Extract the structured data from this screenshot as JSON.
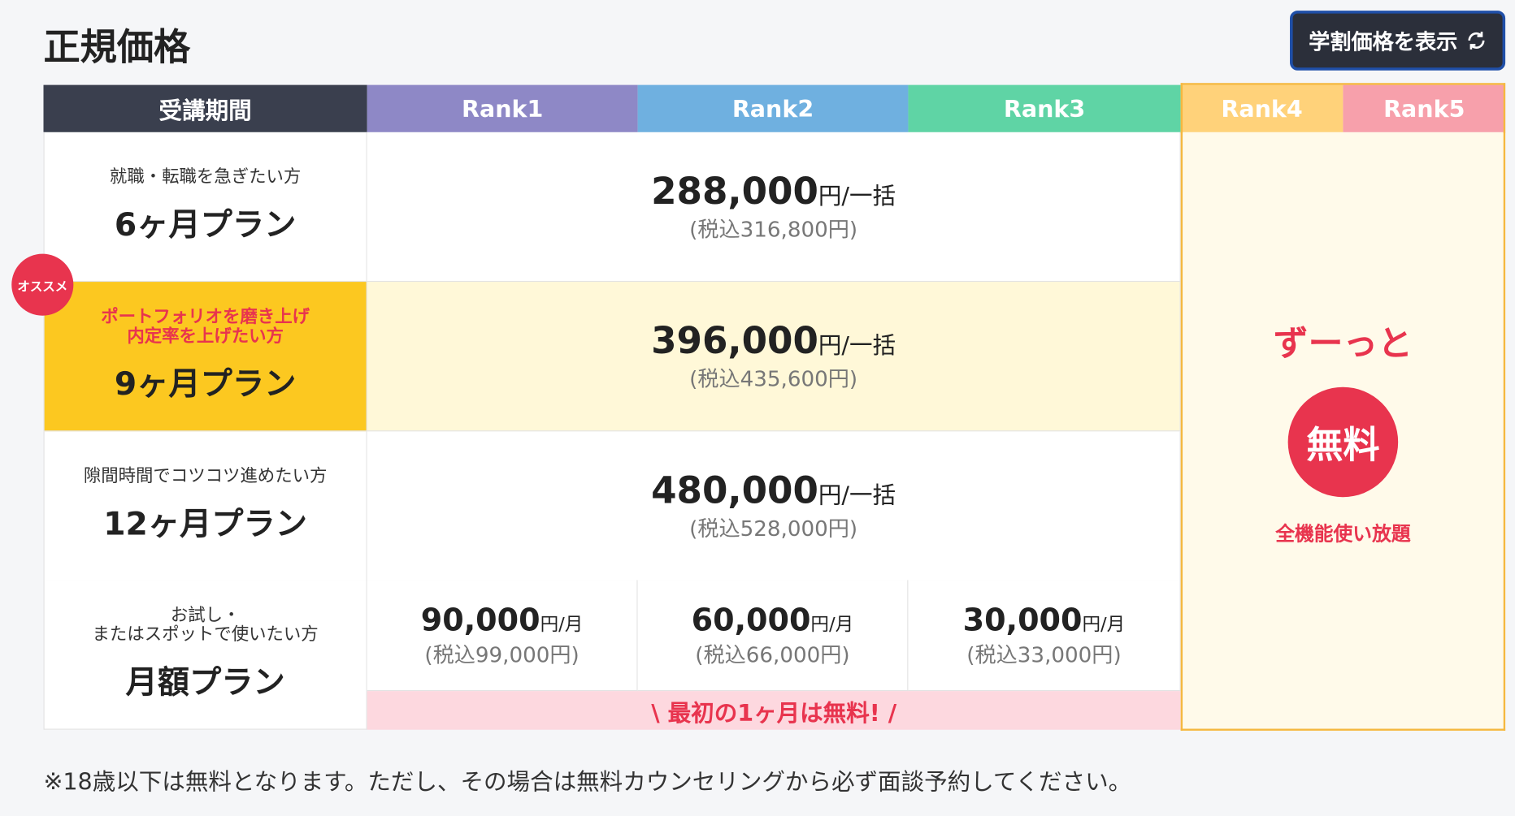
{
  "title": "正規価格",
  "toggle_button": "学割価格を表示",
  "table": {
    "header": [
      "受講期間",
      "Rank1",
      "Rank2",
      "Rank3",
      "Rank4",
      "Rank5"
    ],
    "badge": "オススメ",
    "rows": [
      {
        "subtitle": "就職・転職を急ぎたい方",
        "plan": "6ヶ月プラン",
        "price": "288,000",
        "unit": "円/一括",
        "tax": "(税込316,800円)"
      },
      {
        "subtitle": "ポートフォリオを磨き上げ\n内定率を上げたい方",
        "plan": "9ヶ月プラン",
        "price": "396,000",
        "unit": "円/一括",
        "tax": "(税込435,600円)"
      },
      {
        "subtitle": "隙間時間でコツコツ進めたい方",
        "plan": "12ヶ月プラン",
        "price": "480,000",
        "unit": "円/一括",
        "tax": "(税込528,000円)"
      }
    ],
    "monthly": {
      "subtitle": "お試し・\nまたはスポットで使いたい方",
      "plan": "月額プラン",
      "prices": [
        {
          "price": "90,000",
          "unit": "円/月",
          "tax": "(税込99,000円)"
        },
        {
          "price": "60,000",
          "unit": "円/月",
          "tax": "(税込66,000円)"
        },
        {
          "price": "30,000",
          "unit": "円/月",
          "tax": "(税込33,000円)"
        }
      ],
      "note": "\\ 最初の1ヶ月は無料! /"
    },
    "rank45": {
      "headline": "ずーっと",
      "badge": "無料",
      "caption": "全機能使い放題"
    }
  },
  "footnote": "※18歳以下は無料となります。ただし、その場合は無料カウンセリングから必ず面談予約してください。"
}
